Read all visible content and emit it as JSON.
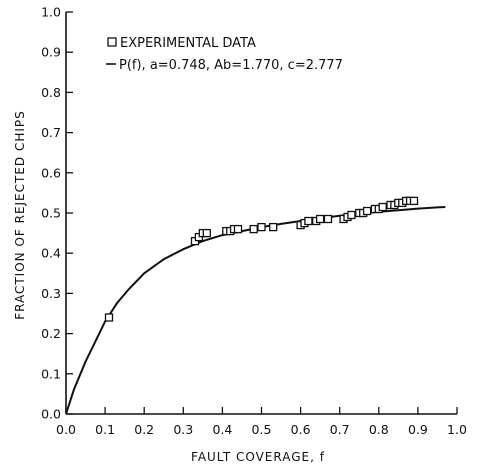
{
  "chart_data": {
    "type": "scatter",
    "xlabel": "FAULT COVERAGE, f",
    "ylabel": "FRACTION OF REJECTED CHIPS",
    "xlim": [
      0.0,
      1.0
    ],
    "ylim": [
      0.0,
      1.0
    ],
    "xticks": [
      "0.0",
      "0.1",
      "0.2",
      "0.3",
      "0.4",
      "0.5",
      "0.6",
      "0.7",
      "0.8",
      "0.9",
      "1.0"
    ],
    "yticks": [
      "0.0",
      "0.1",
      "0.2",
      "0.3",
      "0.4",
      "0.5",
      "0.6",
      "0.7",
      "0.8",
      "0.9",
      "1.0"
    ],
    "grid": false,
    "legend_position": "top-left",
    "series": [
      {
        "name": "EXPERIMENTAL DATA",
        "kind": "scatter",
        "marker": "square-open",
        "x": [
          0.11,
          0.33,
          0.34,
          0.35,
          0.36,
          0.41,
          0.42,
          0.43,
          0.44,
          0.48,
          0.5,
          0.53,
          0.6,
          0.61,
          0.62,
          0.64,
          0.65,
          0.67,
          0.71,
          0.72,
          0.73,
          0.75,
          0.76,
          0.77,
          0.79,
          0.8,
          0.81,
          0.83,
          0.84,
          0.85,
          0.86,
          0.87,
          0.88,
          0.89
        ],
        "y": [
          0.24,
          0.43,
          0.44,
          0.45,
          0.45,
          0.455,
          0.455,
          0.46,
          0.46,
          0.46,
          0.465,
          0.465,
          0.47,
          0.475,
          0.48,
          0.48,
          0.485,
          0.485,
          0.485,
          0.49,
          0.495,
          0.5,
          0.5,
          0.505,
          0.51,
          0.51,
          0.515,
          0.52,
          0.52,
          0.525,
          0.525,
          0.53,
          0.53,
          0.53
        ]
      },
      {
        "name": "P(f), a=0.748, Ab=1.770, c=2.777",
        "kind": "line",
        "x": [
          0.0,
          0.02,
          0.05,
          0.08,
          0.1,
          0.13,
          0.16,
          0.2,
          0.25,
          0.3,
          0.35,
          0.4,
          0.45,
          0.5,
          0.55,
          0.6,
          0.65,
          0.7,
          0.75,
          0.8,
          0.85,
          0.9,
          0.95,
          0.97
        ],
        "y": [
          0.0,
          0.06,
          0.13,
          0.19,
          0.23,
          0.275,
          0.31,
          0.35,
          0.385,
          0.41,
          0.43,
          0.445,
          0.455,
          0.465,
          0.473,
          0.48,
          0.487,
          0.493,
          0.498,
          0.503,
          0.507,
          0.511,
          0.514,
          0.515
        ]
      }
    ]
  }
}
